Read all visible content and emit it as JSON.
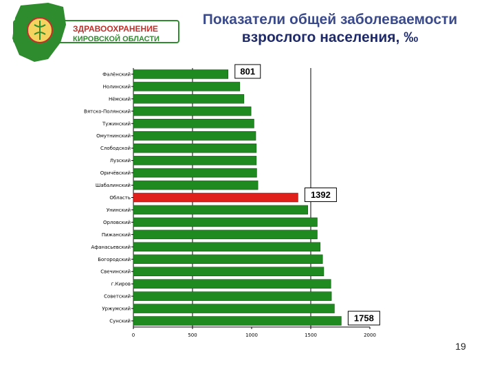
{
  "header": {
    "org_line1": "ЗДРАВООХРАНЕНИЕ",
    "org_line2": "КИРОВСКОЙ ОБЛАСТИ",
    "title_line1": "Показатели общей заболеваемости",
    "title_line2": "взрослого населения, ‰"
  },
  "colors": {
    "bar": "#1f8a1f",
    "highlight": "#e0201b",
    "banner_green": "#2e8b2e",
    "banner_red": "#c0302a"
  },
  "chart_data": {
    "type": "bar",
    "orientation": "horizontal",
    "categories": [
      "Фалёнский",
      "Нолинский",
      "Нёмский",
      "Вятско-Полянский",
      "Тужинский",
      "Омутнинский",
      "Слободской",
      "Лузский",
      "Оричёвский",
      "Шабалинский",
      "Область",
      "Унинский",
      "Орловский",
      "Пижанский",
      "Афанасьевский",
      "Богородский",
      "Свечинский",
      "г.Киров",
      "Советский",
      "Уржумский",
      "Сунский"
    ],
    "values": [
      801,
      900,
      935,
      995,
      1020,
      1035,
      1040,
      1040,
      1043,
      1053,
      1392,
      1475,
      1555,
      1555,
      1580,
      1600,
      1610,
      1670,
      1675,
      1700,
      1758
    ],
    "highlight_category": "Область",
    "callouts": [
      {
        "category": "Фалёнский",
        "label": "801"
      },
      {
        "category": "Область",
        "label": "1392"
      },
      {
        "category": "Сунский",
        "label": "1758"
      }
    ],
    "x_ticks": [
      0,
      500,
      1000,
      1500,
      2000
    ],
    "xlim": [
      0,
      2000
    ],
    "vertical_grid": [
      500,
      1500
    ],
    "xlabel": "",
    "ylabel": ""
  },
  "footer": {
    "page_number": "19"
  }
}
